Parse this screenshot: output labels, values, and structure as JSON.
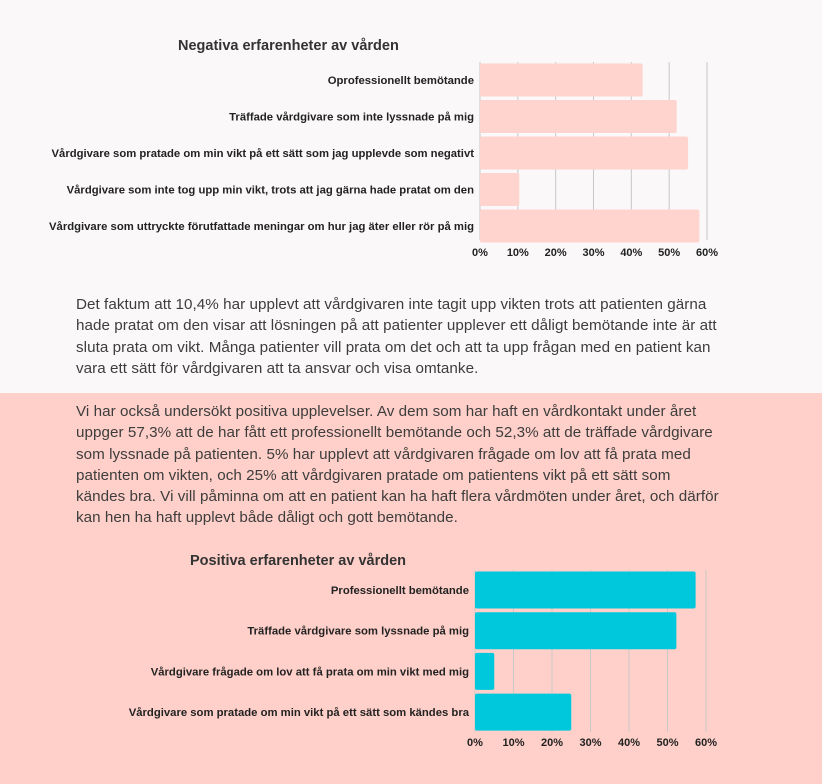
{
  "charts": [
    {
      "title": "Negativa erfarenheter av vården",
      "chart_data": {
        "type": "bar",
        "orientation": "horizontal",
        "title": "Negativa erfarenheter av vården",
        "categories": [
          "Oprofessionellt bemötande",
          "Träffade vårdgivare som inte lyssnade på mig",
          "Vårdgivare som pratade om min vikt på ett sätt som jag upplevde som negativt",
          "Vårdgivare som inte tog upp min vikt, trots att jag gärna hade pratat om den",
          "Vårdgivare som uttryckte förutfattade meningar om hur jag äter eller rör på mig"
        ],
        "values": [
          43,
          52,
          55,
          10.4,
          58
        ],
        "xlim": [
          0,
          60
        ],
        "xticks": [
          "0%",
          "10%",
          "20%",
          "30%",
          "40%",
          "50%",
          "60%"
        ],
        "grid": true,
        "bar_color": "#ffd4cf"
      }
    },
    {
      "title": "Positiva erfarenheter av vården",
      "chart_data": {
        "type": "bar",
        "orientation": "horizontal",
        "title": "Positiva erfarenheter av vården",
        "categories": [
          "Professionellt bemötande",
          "Träffade vårdgivare som lyssnade på mig",
          "Vårdgivare frågade om lov att få prata om min vikt med mig",
          "Vårdgivare som pratade om min vikt på ett sätt som kändes bra"
        ],
        "values": [
          57.3,
          52.3,
          5,
          25
        ],
        "xlim": [
          0,
          60
        ],
        "xticks": [
          "0%",
          "10%",
          "20%",
          "30%",
          "40%",
          "50%",
          "60%"
        ],
        "grid": true,
        "bar_color": "#00c8dc"
      }
    }
  ],
  "paragraph1": [
    "Det faktum att 10,4% har upplevt att vårdgivaren inte tagit upp vikten trots att patienten gärna",
    "hade pratat om den visar att lösningen på att patienter upplever ett dåligt bemötande inte är att",
    "sluta prata om vikt. Många patienter vill prata om det och att ta upp frågan med en patient kan",
    "vara ett sätt för vårdgivaren att ta ansvar och visa omtanke."
  ],
  "paragraph2": [
    "Vi har också undersökt positiva upplevelser. Av dem som har haft en vårdkontakt under året",
    "uppger 57,3% att de har fått ett professionellt bemötande och 52,3% att de träffade vårdgivare",
    "som lyssnade på patienten. 5% har upplevt att vårdgivaren frågade om lov att få prata med",
    "patienten om vikten, och 25% att vårdgivaren pratade om patientens vikt på ett sätt som",
    "kändes bra. Vi vill påminna om att en patient kan ha haft flera vårdmöten under året, och därför",
    "kan hen ha haft upplevt både dåligt och gott bemötande."
  ]
}
